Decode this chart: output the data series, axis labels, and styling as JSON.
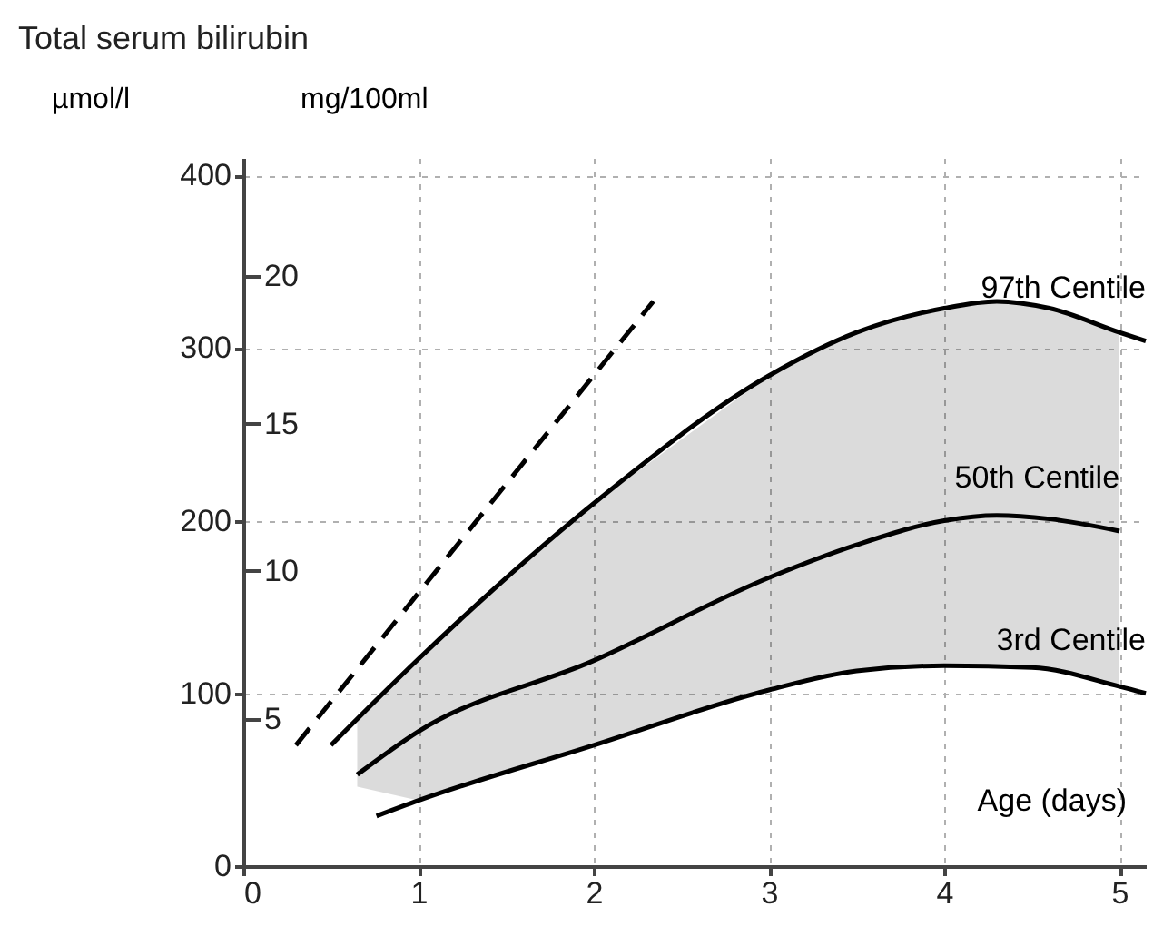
{
  "chart_data": {
    "type": "line",
    "title": "Total serum bilirubin",
    "ylabel": "µmol/l",
    "y2label": "mg/100ml",
    "xlabel": "Age (days)",
    "xlim": [
      0,
      5.15
    ],
    "xticks": [
      0,
      1,
      2,
      3,
      4,
      5
    ],
    "ylim": [
      0,
      410
    ],
    "yticks": [
      0,
      100,
      200,
      300,
      400
    ],
    "y2lim": [
      0,
      24
    ],
    "y2ticks": [
      5,
      10,
      15,
      20
    ],
    "grid": true,
    "series": [
      {
        "color": "#000000",
        "line_style": "dashed",
        "x": [
          0.3,
          2.34
        ],
        "values": [
          70,
          327
        ]
      },
      {
        "name": "97th Centile",
        "color": "#000000",
        "x": [
          0.5,
          1,
          2,
          3,
          3.5,
          4,
          4.3,
          4.6,
          5,
          5.15
        ],
        "values": [
          70,
          120,
          210,
          284,
          309,
          323,
          327,
          323,
          309,
          304
        ]
      },
      {
        "name": "50th Centile",
        "color": "#000000",
        "x": [
          0.65,
          1,
          2,
          3,
          3.5,
          4,
          4.3,
          4.6,
          5
        ],
        "values": [
          53,
          78,
          119,
          167,
          186,
          200,
          203,
          201,
          194
        ],
        "lower": [
          46,
          38,
          70,
          102,
          113,
          116,
          115,
          114,
          104
        ],
        "upper": [
          85,
          120,
          210,
          284,
          309,
          323,
          327,
          323,
          309
        ]
      },
      {
        "name": "3rd Centile",
        "color": "#000000",
        "x": [
          0.76,
          1,
          2,
          3,
          3.5,
          4,
          4.5,
          5,
          5.15
        ],
        "values": [
          29,
          38,
          70,
          102,
          113,
          116,
          115,
          104,
          100
        ]
      }
    ]
  }
}
